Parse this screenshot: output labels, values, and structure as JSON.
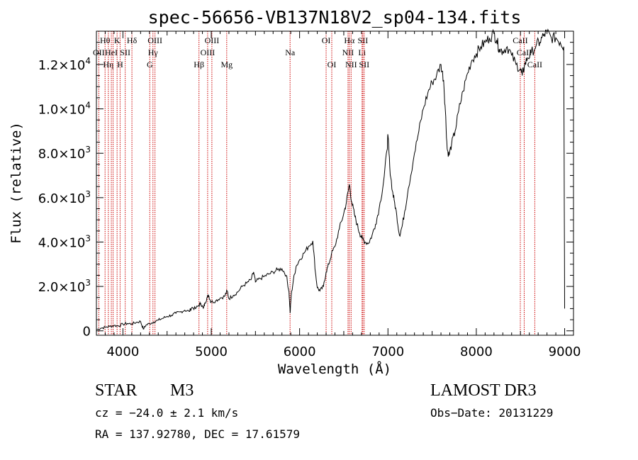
{
  "chart_data": {
    "type": "line",
    "title": "spec-56656-VB137N18V2_sp04-134.fits",
    "xlabel": "Wavelength (Å)",
    "ylabel": "Flux (relative)",
    "xlim": [
      3700,
      9100
    ],
    "ylim": [
      -200,
      13500
    ],
    "x_ticks": [
      {
        "value": 4000,
        "label": "4000"
      },
      {
        "value": 5000,
        "label": "5000"
      },
      {
        "value": 6000,
        "label": "6000"
      },
      {
        "value": 7000,
        "label": "7000"
      },
      {
        "value": 8000,
        "label": "8000"
      },
      {
        "value": 9000,
        "label": "9000"
      }
    ],
    "y_ticks": [
      {
        "value": 0,
        "mant": "0",
        "exp": ""
      },
      {
        "value": 2000,
        "mant": "2.0×10",
        "exp": "3"
      },
      {
        "value": 4000,
        "mant": "4.0×10",
        "exp": "3"
      },
      {
        "value": 6000,
        "mant": "6.0×10",
        "exp": "3"
      },
      {
        "value": 8000,
        "mant": "8.0×10",
        "exp": "3"
      },
      {
        "value": 10000,
        "mant": "1.0×10",
        "exp": "4"
      },
      {
        "value": 12000,
        "mant": "1.2×10",
        "exp": "4"
      }
    ],
    "grid": false,
    "series": [
      {
        "name": "flux",
        "points": [
          [
            3700,
            50
          ],
          [
            3750,
            120
          ],
          [
            3800,
            160
          ],
          [
            3850,
            200
          ],
          [
            3900,
            240
          ],
          [
            3950,
            220
          ],
          [
            4000,
            300
          ],
          [
            4050,
            330
          ],
          [
            4100,
            310
          ],
          [
            4150,
            380
          ],
          [
            4200,
            420
          ],
          [
            4230,
            80
          ],
          [
            4260,
            250
          ],
          [
            4300,
            330
          ],
          [
            4350,
            400
          ],
          [
            4400,
            480
          ],
          [
            4450,
            560
          ],
          [
            4500,
            650
          ],
          [
            4550,
            700
          ],
          [
            4600,
            790
          ],
          [
            4650,
            850
          ],
          [
            4700,
            930
          ],
          [
            4750,
            870
          ],
          [
            4780,
            1050
          ],
          [
            4820,
            1000
          ],
          [
            4860,
            1150
          ],
          [
            4880,
            1250
          ],
          [
            4910,
            1000
          ],
          [
            4930,
            1250
          ],
          [
            4950,
            1480
          ],
          [
            4970,
            1600
          ],
          [
            4990,
            1350
          ],
          [
            5000,
            1300
          ],
          [
            5050,
            1350
          ],
          [
            5100,
            1480
          ],
          [
            5150,
            1550
          ],
          [
            5180,
            1800
          ],
          [
            5200,
            1450
          ],
          [
            5250,
            1600
          ],
          [
            5300,
            1750
          ],
          [
            5350,
            2000
          ],
          [
            5400,
            2150
          ],
          [
            5450,
            2300
          ],
          [
            5480,
            2650
          ],
          [
            5500,
            2200
          ],
          [
            5550,
            2350
          ],
          [
            5600,
            2450
          ],
          [
            5650,
            2550
          ],
          [
            5700,
            2650
          ],
          [
            5750,
            2750
          ],
          [
            5800,
            2800
          ],
          [
            5850,
            2500
          ],
          [
            5880,
            1750
          ],
          [
            5893,
            800
          ],
          [
            5905,
            1600
          ],
          [
            5930,
            2300
          ],
          [
            5960,
            2900
          ],
          [
            6000,
            3200
          ],
          [
            6050,
            3500
          ],
          [
            6100,
            3800
          ],
          [
            6150,
            4050
          ],
          [
            6180,
            2600
          ],
          [
            6200,
            1950
          ],
          [
            6230,
            1800
          ],
          [
            6270,
            2000
          ],
          [
            6300,
            2650
          ],
          [
            6330,
            3000
          ],
          [
            6360,
            3450
          ],
          [
            6400,
            3800
          ],
          [
            6450,
            4600
          ],
          [
            6500,
            5300
          ],
          [
            6530,
            5800
          ],
          [
            6563,
            6600
          ],
          [
            6590,
            5800
          ],
          [
            6620,
            5250
          ],
          [
            6650,
            4800
          ],
          [
            6680,
            4400
          ],
          [
            6710,
            4150
          ],
          [
            6740,
            4000
          ],
          [
            6780,
            3950
          ],
          [
            6820,
            4300
          ],
          [
            6860,
            4800
          ],
          [
            6900,
            5500
          ],
          [
            6950,
            6700
          ],
          [
            6990,
            8150
          ],
          [
            7000,
            8800
          ],
          [
            7020,
            7400
          ],
          [
            7050,
            6300
          ],
          [
            7070,
            5900
          ],
          [
            7100,
            5200
          ],
          [
            7130,
            4300
          ],
          [
            7160,
            4700
          ],
          [
            7190,
            5400
          ],
          [
            7230,
            6400
          ],
          [
            7300,
            8000
          ],
          [
            7350,
            9000
          ],
          [
            7400,
            10000
          ],
          [
            7450,
            10700
          ],
          [
            7500,
            11200
          ],
          [
            7550,
            11500
          ],
          [
            7600,
            12000
          ],
          [
            7630,
            11300
          ],
          [
            7650,
            9900
          ],
          [
            7670,
            8200
          ],
          [
            7690,
            7900
          ],
          [
            7720,
            8400
          ],
          [
            7760,
            9000
          ],
          [
            7800,
            9900
          ],
          [
            7850,
            10800
          ],
          [
            7900,
            11600
          ],
          [
            7950,
            12200
          ],
          [
            8000,
            12500
          ],
          [
            8050,
            12800
          ],
          [
            8100,
            13000
          ],
          [
            8150,
            13200
          ],
          [
            8200,
            13400
          ],
          [
            8230,
            13100
          ],
          [
            8260,
            12700
          ],
          [
            8300,
            12600
          ],
          [
            8350,
            12800
          ],
          [
            8400,
            12400
          ],
          [
            8450,
            12000
          ],
          [
            8500,
            11800
          ],
          [
            8520,
            11500
          ],
          [
            8545,
            11950
          ],
          [
            8580,
            12300
          ],
          [
            8620,
            12500
          ],
          [
            8680,
            12900
          ],
          [
            8720,
            13000
          ],
          [
            8760,
            13300
          ],
          [
            8800,
            13450
          ],
          [
            8850,
            13200
          ],
          [
            8900,
            13200
          ],
          [
            8950,
            13000
          ],
          [
            8990,
            12800
          ],
          [
            9000,
            1000
          ]
        ]
      }
    ],
    "lines": [
      {
        "x": 3727,
        "label": "OII",
        "row": 1
      },
      {
        "x": 3798,
        "label": "Hθ",
        "row": 0
      },
      {
        "x": 3835,
        "label": "Hη",
        "row": 2
      },
      {
        "x": 3869,
        "label": "HeI",
        "row": 1
      },
      {
        "x": 3889,
        "label": "",
        "row": -1
      },
      {
        "x": 3934,
        "label": "K",
        "row": 0
      },
      {
        "x": 3968,
        "label": "H",
        "row": 2
      },
      {
        "x": 4026,
        "label": "SII",
        "row": 1
      },
      {
        "x": 4102,
        "label": "Hδ",
        "row": 0
      },
      {
        "x": 4304,
        "label": "G",
        "row": 2
      },
      {
        "x": 4340,
        "label": "Hγ",
        "row": 1
      },
      {
        "x": 4363,
        "label": "OIII",
        "row": 0
      },
      {
        "x": 4861,
        "label": "Hβ",
        "row": 2
      },
      {
        "x": 4959,
        "label": "OIII",
        "row": 1
      },
      {
        "x": 5007,
        "label": "OIII",
        "row": 0
      },
      {
        "x": 5175,
        "label": "Mg",
        "row": 2
      },
      {
        "x": 5892,
        "label": "Na",
        "row": 1
      },
      {
        "x": 6300,
        "label": "OI",
        "row": 0
      },
      {
        "x": 6364,
        "label": "OI",
        "row": 2
      },
      {
        "x": 6548,
        "label": "NII",
        "row": 1
      },
      {
        "x": 6563,
        "label": "Hα",
        "row": 0
      },
      {
        "x": 6583,
        "label": "NII",
        "row": 2
      },
      {
        "x": 6707,
        "label": "Li",
        "row": 1
      },
      {
        "x": 6716,
        "label": "SII",
        "row": 0
      },
      {
        "x": 6731,
        "label": "SII",
        "row": 2
      },
      {
        "x": 8498,
        "label": "CaII",
        "row": 0
      },
      {
        "x": 8542,
        "label": "CaII",
        "row": 1
      },
      {
        "x": 8662,
        "label": "CaII",
        "row": 2
      }
    ],
    "line_color": "#cc0000"
  },
  "info": {
    "object_class": "STAR",
    "subclass": "M3",
    "survey": "LAMOST DR3",
    "cz": "cz = −24.0 ± 2.1 km/s",
    "obs_date": "Obs−Date: 20131229",
    "coords": "RA = 137.92780, DEC =  17.61579"
  }
}
